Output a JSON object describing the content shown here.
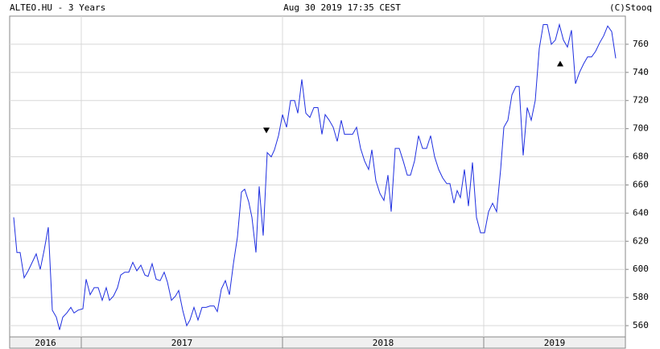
{
  "chart_data": {
    "type": "line",
    "title": "ALTEO.HU - 3 Years",
    "subtitle": "Aug 30 2019 17:35 CEST",
    "source": "(C)Stooq",
    "xlim": [
      2016.644,
      2019.704
    ],
    "xticks": [
      2016,
      2017,
      2018,
      2019
    ],
    "ylim": [
      552,
      780
    ],
    "yticks": [
      560,
      580,
      600,
      620,
      640,
      660,
      680,
      700,
      720,
      740,
      760
    ],
    "grid": true,
    "series": [
      {
        "color": "#1f2fe0",
        "x": [
          2016.664,
          2016.68,
          2016.696,
          2016.716,
          2016.736,
          2016.756,
          2016.776,
          2016.796,
          2016.816,
          2016.836,
          2016.856,
          2016.876,
          2016.892,
          2016.908,
          2016.928,
          2016.948,
          2016.964,
          2016.984,
          2017.008,
          2017.024,
          2017.044,
          2017.064,
          2017.084,
          2017.104,
          2017.124,
          2017.14,
          2017.16,
          2017.18,
          2017.196,
          2017.216,
          2017.236,
          2017.256,
          2017.276,
          2017.296,
          2017.316,
          2017.332,
          2017.352,
          2017.372,
          2017.392,
          2017.412,
          2017.428,
          2017.448,
          2017.468,
          2017.484,
          2017.504,
          2017.524,
          2017.54,
          2017.56,
          2017.58,
          2017.6,
          2017.62,
          2017.64,
          2017.66,
          2017.676,
          2017.696,
          2017.716,
          2017.736,
          2017.756,
          2017.776,
          2017.796,
          2017.812,
          2017.832,
          2017.848,
          2017.868,
          2017.884,
          2017.904,
          2017.924,
          2017.944,
          2017.96,
          2017.98,
          2018.0,
          2018.02,
          2018.04,
          2018.06,
          2018.076,
          2018.096,
          2018.116,
          2018.136,
          2018.156,
          2018.176,
          2018.196,
          2018.212,
          2018.232,
          2018.252,
          2018.272,
          2018.292,
          2018.308,
          2018.328,
          2018.348,
          2018.368,
          2018.388,
          2018.408,
          2018.428,
          2018.444,
          2018.464,
          2018.484,
          2018.504,
          2018.524,
          2018.54,
          2018.56,
          2018.58,
          2018.6,
          2018.62,
          2018.636,
          2018.656,
          2018.676,
          2018.696,
          2018.716,
          2018.736,
          2018.756,
          2018.776,
          2018.796,
          2018.816,
          2018.832,
          2018.852,
          2018.868,
          2018.884,
          2018.904,
          2018.924,
          2018.944,
          2018.964,
          2018.984,
          2019.004,
          2019.024,
          2019.044,
          2019.064,
          2019.084,
          2019.1,
          2019.12,
          2019.14,
          2019.16,
          2019.176,
          2019.196,
          2019.216,
          2019.236,
          2019.256,
          2019.276,
          2019.296,
          2019.316,
          2019.336,
          2019.356,
          2019.376,
          2019.396,
          2019.416,
          2019.436,
          2019.456,
          2019.476,
          2019.496,
          2019.516,
          2019.536,
          2019.556,
          2019.576,
          2019.596,
          2019.616,
          2019.636,
          2019.656
        ],
        "values": [
          637,
          612,
          612,
          594,
          599,
          605,
          611,
          600,
          614,
          630,
          571,
          566,
          557,
          566,
          569,
          573,
          569,
          571,
          572,
          593,
          582,
          587,
          587,
          578,
          587,
          578,
          581,
          587,
          596,
          598,
          598,
          605,
          599,
          603,
          596,
          595,
          604,
          593,
          592,
          598,
          591,
          578,
          581,
          585,
          571,
          560,
          564,
          573,
          564,
          573,
          573,
          574,
          574,
          570,
          586,
          592,
          582,
          604,
          623,
          655,
          657,
          648,
          637,
          612,
          659,
          624,
          683,
          680,
          685,
          695,
          710,
          701,
          720,
          720,
          711,
          735,
          711,
          708,
          715,
          715,
          696,
          710,
          706,
          701,
          691,
          706,
          696,
          696,
          696,
          701,
          686,
          677,
          671,
          685,
          663,
          654,
          649,
          667,
          641,
          686,
          686,
          677,
          667,
          667,
          677,
          695,
          686,
          686,
          695,
          680,
          671,
          665,
          661,
          661,
          647,
          656,
          651,
          671,
          645,
          676,
          637,
          626,
          626,
          641,
          647,
          641,
          671,
          701,
          706,
          724,
          730,
          730,
          681,
          715,
          706,
          720,
          757,
          774,
          774,
          760,
          763,
          774,
          763,
          758,
          770,
          732,
          740,
          746,
          751,
          751,
          755,
          761,
          766,
          773,
          769,
          750
        ]
      }
    ],
    "markers": [
      {
        "x": 2017.92,
        "y": 699,
        "shape": "down"
      },
      {
        "x": 2019.38,
        "y": 746,
        "shape": "up"
      }
    ]
  }
}
